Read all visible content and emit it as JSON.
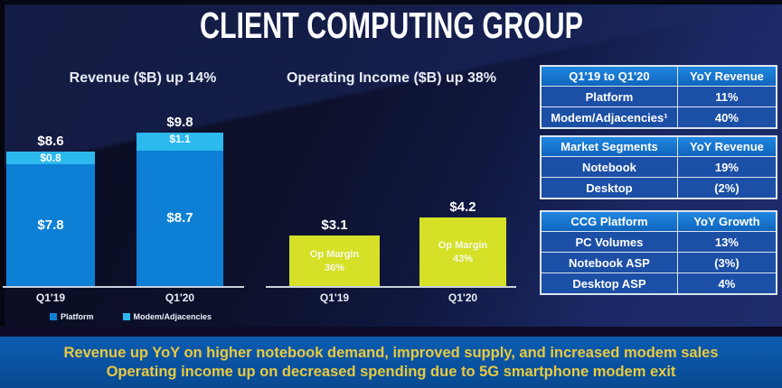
{
  "slide_title": "CLIENT COMPUTING GROUP",
  "chart_data": [
    {
      "type": "bar",
      "stacked": true,
      "title": "Revenue ($B) up 14%",
      "categories": [
        "Q1'19",
        "Q1'20"
      ],
      "series": [
        {
          "name": "Platform",
          "values": [
            7.8,
            8.7
          ],
          "color": "#0d80d6"
        },
        {
          "name": "Modem/Adjacencies",
          "values": [
            0.8,
            1.1
          ],
          "color": "#2cb9ee"
        }
      ],
      "totals": [
        8.6,
        9.8
      ],
      "value_prefix": "$",
      "ylim": [
        0,
        10
      ],
      "legend_position": "bottom",
      "grid": false
    },
    {
      "type": "bar",
      "title": "Operating Income ($B) up 38%",
      "categories": [
        "Q1'19",
        "Q1'20"
      ],
      "values": [
        3.1,
        4.2
      ],
      "margin_label": "Op Margin",
      "margins": [
        36,
        43
      ],
      "value_prefix": "$",
      "ylim": [
        0,
        5
      ],
      "grid": false
    }
  ],
  "tables": [
    {
      "header": [
        "Q1'19 to Q1'20",
        "YoY Revenue"
      ],
      "rows": [
        [
          "Platform",
          "11%"
        ],
        [
          "Modem/Adjacencies¹",
          "40%"
        ]
      ]
    },
    {
      "header": [
        "Market Segments",
        "YoY Revenue"
      ],
      "rows": [
        [
          "Notebook",
          "19%"
        ],
        [
          "Desktop",
          "(2%)"
        ]
      ]
    },
    {
      "header": [
        "CCG Platform",
        "YoY Growth"
      ],
      "rows": [
        [
          "PC Volumes",
          "13%"
        ],
        [
          "Notebook ASP",
          "(3%)"
        ],
        [
          "Desktop ASP",
          "4%"
        ]
      ]
    }
  ],
  "banner": {
    "line1": "Revenue up YoY on higher notebook demand, improved supply, and increased modem sales",
    "line2": "Operating income up on decreased spending due to 5G smartphone modem exit"
  },
  "colors": {
    "platform_bar": "#0d80d6",
    "modem_bar": "#2cb9ee",
    "op_income_bar": "#d5e026",
    "table_header": "#1273cc",
    "table_row": "#1c4fa6",
    "banner_bg": "#0a55a6",
    "banner_text": "#e9c940",
    "background": "#0d1130"
  }
}
